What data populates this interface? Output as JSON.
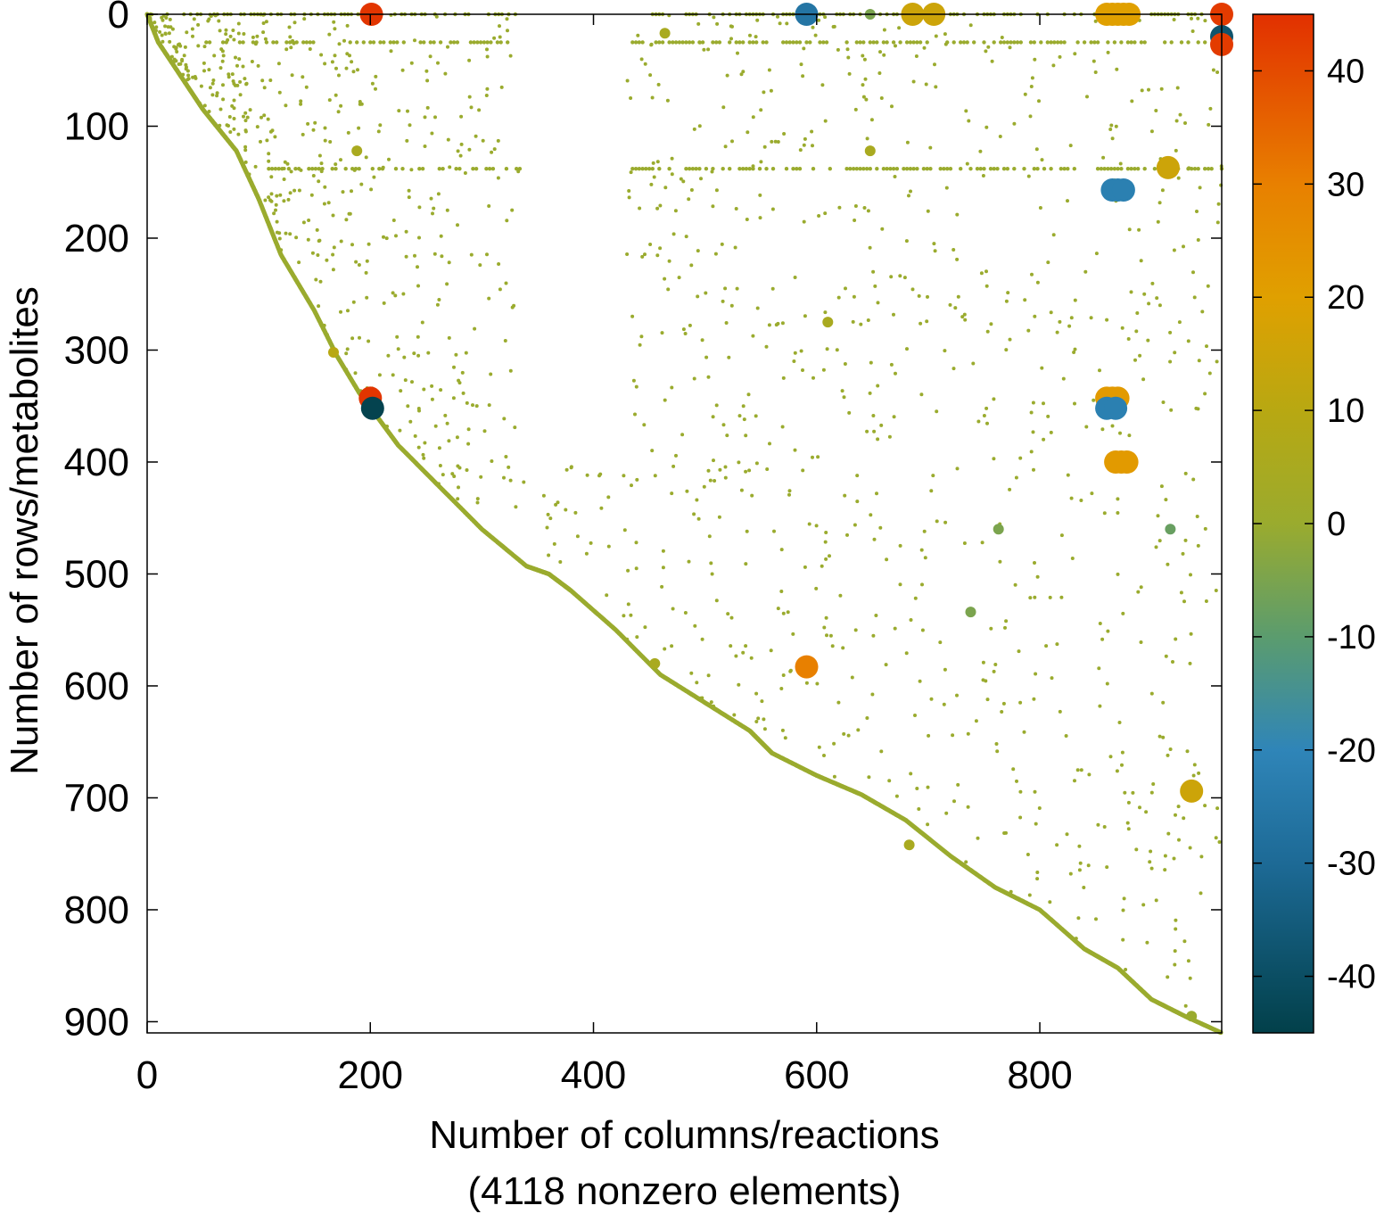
{
  "chart_data": {
    "type": "scatter",
    "title": "",
    "xlabel": "Number of columns/reactions",
    "xlabel_line2": "(4118 nonzero elements)",
    "ylabel": "Number of rows/metabolites",
    "xlim": [
      0,
      963
    ],
    "ylim": [
      0,
      910
    ],
    "y_axis_inverted": true,
    "x_ticks": [
      "0",
      "200",
      "400",
      "600",
      "800"
    ],
    "x_tick_values": [
      0,
      200,
      400,
      600,
      800
    ],
    "y_ticks": [
      "0",
      "100",
      "200",
      "300",
      "400",
      "500",
      "600",
      "700",
      "800",
      "900"
    ],
    "y_tick_values": [
      0,
      100,
      200,
      300,
      400,
      500,
      600,
      700,
      800,
      900
    ],
    "grid": false,
    "nonzero_count": 4118,
    "colorbar": {
      "min": -45,
      "max": 45,
      "ticks": [
        "40",
        "30",
        "20",
        "10",
        "0",
        "-10",
        "-20",
        "-30",
        "-40"
      ],
      "tick_values": [
        40,
        30,
        20,
        10,
        0,
        -10,
        -20,
        -30,
        -40
      ],
      "stops": [
        {
          "value": -45,
          "color": "#02404a"
        },
        {
          "value": -30,
          "color": "#1d6a96"
        },
        {
          "value": -20,
          "color": "#2f85b8"
        },
        {
          "value": -10,
          "color": "#5b9c6e"
        },
        {
          "value": 0,
          "color": "#9aab2e"
        },
        {
          "value": 10,
          "color": "#b8a812"
        },
        {
          "value": 20,
          "color": "#e0a000"
        },
        {
          "value": 30,
          "color": "#e88000"
        },
        {
          "value": 45,
          "color": "#e23000"
        }
      ]
    },
    "diagonal_path": [
      [
        0,
        0
      ],
      [
        10,
        25
      ],
      [
        30,
        55
      ],
      [
        50,
        85
      ],
      [
        80,
        122
      ],
      [
        100,
        165
      ],
      [
        120,
        215
      ],
      [
        150,
        265
      ],
      [
        170,
        305
      ],
      [
        190,
        338
      ],
      [
        205,
        358
      ],
      [
        225,
        385
      ],
      [
        260,
        420
      ],
      [
        300,
        460
      ],
      [
        340,
        493
      ],
      [
        360,
        500
      ],
      [
        380,
        515
      ],
      [
        420,
        550
      ],
      [
        460,
        590
      ],
      [
        500,
        615
      ],
      [
        540,
        640
      ],
      [
        560,
        660
      ],
      [
        600,
        680
      ],
      [
        640,
        697
      ],
      [
        680,
        720
      ],
      [
        720,
        752
      ],
      [
        760,
        780
      ],
      [
        800,
        800
      ],
      [
        840,
        835
      ],
      [
        870,
        852
      ],
      [
        900,
        880
      ],
      [
        930,
        895
      ],
      [
        963,
        910
      ]
    ],
    "dense_row_bands": [
      {
        "row": 0,
        "x_from": 0,
        "x_to": 330,
        "value": 0
      },
      {
        "row": 0,
        "x_from": 450,
        "x_to": 963,
        "value": 0
      },
      {
        "row": 25,
        "x_from": 50,
        "x_to": 330,
        "value": 0
      },
      {
        "row": 25,
        "x_from": 435,
        "x_to": 963,
        "value": 0
      },
      {
        "row": 138,
        "x_from": 100,
        "x_to": 340,
        "value": 0
      },
      {
        "row": 138,
        "x_from": 435,
        "x_to": 963,
        "value": 0
      }
    ],
    "highlight_points": [
      {
        "x": 201,
        "y": 0,
        "value": 44
      },
      {
        "x": 591,
        "y": 0,
        "value": -26
      },
      {
        "x": 860,
        "y": 0,
        "value": 20
      },
      {
        "x": 865,
        "y": 0,
        "value": 20
      },
      {
        "x": 870,
        "y": 0,
        "value": 20
      },
      {
        "x": 875,
        "y": 0,
        "value": 20
      },
      {
        "x": 880,
        "y": 0,
        "value": 20
      },
      {
        "x": 963,
        "y": 0,
        "value": 43
      },
      {
        "x": 963,
        "y": 20,
        "value": -38
      },
      {
        "x": 963,
        "y": 27,
        "value": 43
      },
      {
        "x": 865,
        "y": 157,
        "value": -22
      },
      {
        "x": 870,
        "y": 157,
        "value": -22
      },
      {
        "x": 875,
        "y": 157,
        "value": -22
      },
      {
        "x": 200,
        "y": 343,
        "value": 44
      },
      {
        "x": 202,
        "y": 352,
        "value": -44
      },
      {
        "x": 860,
        "y": 343,
        "value": 22
      },
      {
        "x": 865,
        "y": 343,
        "value": 22
      },
      {
        "x": 870,
        "y": 343,
        "value": 22
      },
      {
        "x": 860,
        "y": 352,
        "value": -22
      },
      {
        "x": 868,
        "y": 352,
        "value": -22
      },
      {
        "x": 868,
        "y": 400,
        "value": 22
      },
      {
        "x": 873,
        "y": 400,
        "value": 22
      },
      {
        "x": 878,
        "y": 400,
        "value": 22
      },
      {
        "x": 591,
        "y": 583,
        "value": 30
      },
      {
        "x": 167,
        "y": 302,
        "value": 10
      },
      {
        "x": 188,
        "y": 122,
        "value": 5
      },
      {
        "x": 464,
        "y": 17,
        "value": 5
      },
      {
        "x": 648,
        "y": 0,
        "value": -5
      },
      {
        "x": 686,
        "y": 0,
        "value": 15
      },
      {
        "x": 705,
        "y": 0,
        "value": 15
      },
      {
        "x": 648,
        "y": 122,
        "value": 5
      },
      {
        "x": 610,
        "y": 275,
        "value": 5
      },
      {
        "x": 915,
        "y": 137,
        "value": 15
      },
      {
        "x": 917,
        "y": 460,
        "value": -8
      },
      {
        "x": 763,
        "y": 460,
        "value": -5
      },
      {
        "x": 738,
        "y": 534,
        "value": -5
      },
      {
        "x": 683,
        "y": 742,
        "value": 5
      },
      {
        "x": 936,
        "y": 694,
        "value": 15
      },
      {
        "x": 936,
        "y": 895,
        "value": 0
      },
      {
        "x": 455,
        "y": 580,
        "value": 5
      }
    ]
  }
}
